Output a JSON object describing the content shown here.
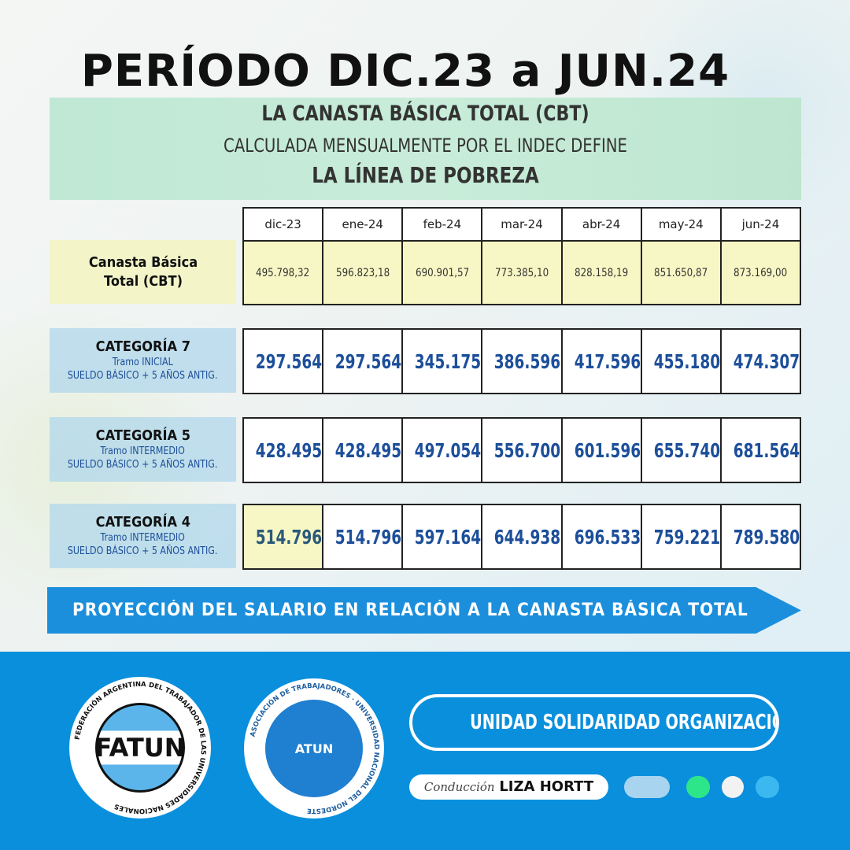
{
  "title": "PERÍODO DIC.23 a JUN.24",
  "banner": {
    "line1": "LA CANASTA BÁSICA TOTAL (CBT)",
    "line2": "CALCULADA MENSUALMENTE POR EL INDEC DEFINE",
    "line3": "LA LÍNEA DE POBREZA"
  },
  "table": {
    "months": [
      "dic-23",
      "ene-24",
      "feb-24",
      "mar-24",
      "abr-24",
      "may-24",
      "jun-24"
    ],
    "cbt": {
      "label": "Canasta Básica Total (CBT)",
      "values": [
        "495.798,32",
        "596.823,18",
        "690.901,57",
        "773.385,10",
        "828.158,19",
        "851.650,87",
        "873.169,00"
      ]
    },
    "categories": [
      {
        "name": "CATEGORÍA 7",
        "tramo": "Tramo INICIAL",
        "detail": "SUELDO BÁSICO + 5 AÑOS ANTIG.",
        "values": [
          "297.564",
          "297.564",
          "345.175",
          "386.596",
          "417.596",
          "455.180",
          "474.307"
        ]
      },
      {
        "name": "CATEGORÍA 5",
        "tramo": "Tramo INTERMEDIO",
        "detail": "SUELDO BÁSICO + 5 AÑOS ANTIG.",
        "values": [
          "428.495",
          "428.495",
          "497.054",
          "556.700",
          "601.596",
          "655.740",
          "681.564"
        ]
      },
      {
        "name": "CATEGORÍA 4",
        "tramo": "Tramo INTERMEDIO",
        "detail": "SUELDO BÁSICO + 5 AÑOS ANTIG.",
        "values": [
          "514.796",
          "514.796",
          "597.164",
          "644.938",
          "696.533",
          "759.221",
          "789.580"
        ]
      }
    ]
  },
  "arrow_banner": "PROYECCIÓN DEL SALARIO EN RELACIÓN A LA CANASTA BÁSICA TOTAL",
  "footer": {
    "logo1": {
      "text": "FATUN",
      "ring": "FEDERACIÓN ARGENTINA DEL TRABAJADOR DE LAS UNIVERSIDADES NACIONALES"
    },
    "logo2": {
      "text": "ATUN",
      "ring": "ASOCIACIÓN DE TRABAJADORES · UNIVERSIDAD NACIONAL DEL NORDESTE"
    },
    "slogan": "UNIDAD  SOLIDARIDAD  ORGANIZACIÓN",
    "conduccion_label": "Conducción",
    "conduccion_name": "LIZA HORTT",
    "colors": {
      "footer": "#0a8fdd",
      "dot1": "#a9d4ef",
      "dot2": "#2ee68a",
      "dot3": "#f2f2f2",
      "dot4": "#3cb8f0"
    }
  }
}
